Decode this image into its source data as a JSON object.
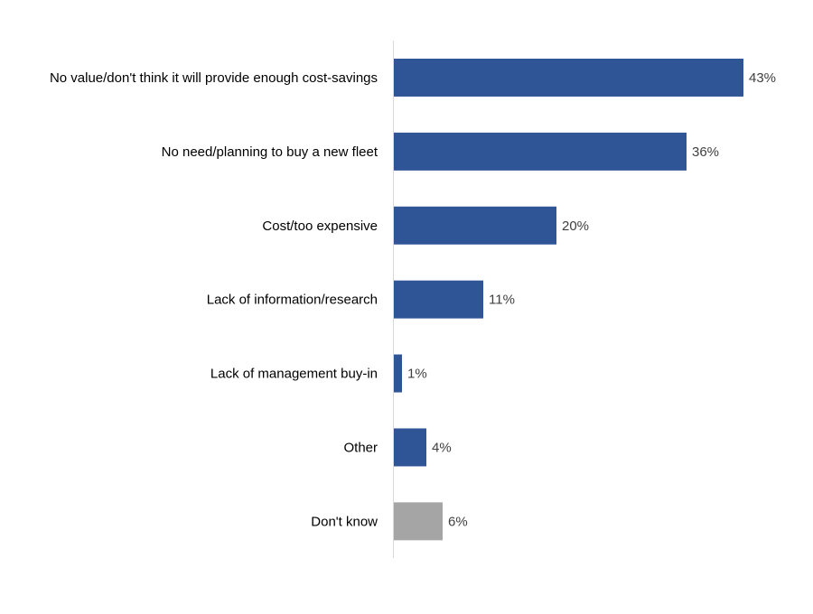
{
  "chart_data": {
    "type": "bar",
    "orientation": "horizontal",
    "categories": [
      "No value/don't think it will provide enough cost-savings",
      "No need/planning to buy a new fleet",
      "Cost/too expensive",
      "Lack of information/research",
      "Lack of management buy-in",
      "Other",
      "Don't know"
    ],
    "values": [
      43,
      36,
      20,
      11,
      1,
      4,
      6
    ],
    "data_labels": [
      "43%",
      "36%",
      "20%",
      "11%",
      "1%",
      "4%",
      "6%"
    ],
    "bar_colors": [
      "#2F5597",
      "#2F5597",
      "#2F5597",
      "#2F5597",
      "#2F5597",
      "#2F5597",
      "#A5A5A5"
    ],
    "unit": "%",
    "xlim": [
      0,
      45
    ],
    "title": "",
    "xlabel": "",
    "ylabel": "",
    "grid": false,
    "legend": "none"
  }
}
